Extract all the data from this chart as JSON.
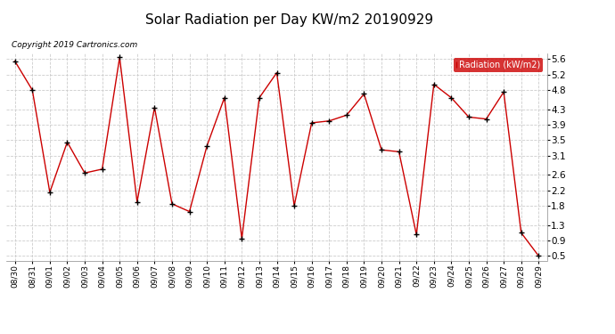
{
  "title": "Solar Radiation per Day KW/m2 20190929",
  "copyright_text": "Copyright 2019 Cartronics.com",
  "legend_label": "Radiation (kW/m2)",
  "dates": [
    "08/30",
    "08/31",
    "09/01",
    "09/02",
    "09/03",
    "09/04",
    "09/05",
    "09/06",
    "09/07",
    "09/08",
    "09/09",
    "09/10",
    "09/11",
    "09/12",
    "09/13",
    "09/14",
    "09/15",
    "09/16",
    "09/17",
    "09/18",
    "09/19",
    "09/20",
    "09/21",
    "09/22",
    "09/23",
    "09/24",
    "09/25",
    "09/26",
    "09/27",
    "09/28",
    "09/29"
  ],
  "values": [
    5.55,
    4.8,
    2.15,
    3.45,
    2.65,
    2.75,
    5.65,
    1.9,
    4.35,
    1.85,
    1.65,
    3.35,
    4.6,
    0.95,
    4.6,
    5.25,
    1.8,
    3.95,
    4.0,
    4.15,
    4.7,
    3.25,
    3.2,
    1.05,
    4.95,
    4.6,
    4.1,
    4.05,
    4.75,
    1.1,
    0.5
  ],
  "line_color": "#cc0000",
  "marker_color": "#000000",
  "background_color": "#ffffff",
  "grid_color": "#cccccc",
  "ylim": [
    0.38,
    5.75
  ],
  "yticks": [
    0.5,
    0.9,
    1.3,
    1.8,
    2.2,
    2.6,
    3.1,
    3.5,
    3.9,
    4.3,
    4.8,
    5.2,
    5.6
  ],
  "title_fontsize": 11,
  "legend_bg": "#cc0000",
  "legend_fg": "#ffffff"
}
